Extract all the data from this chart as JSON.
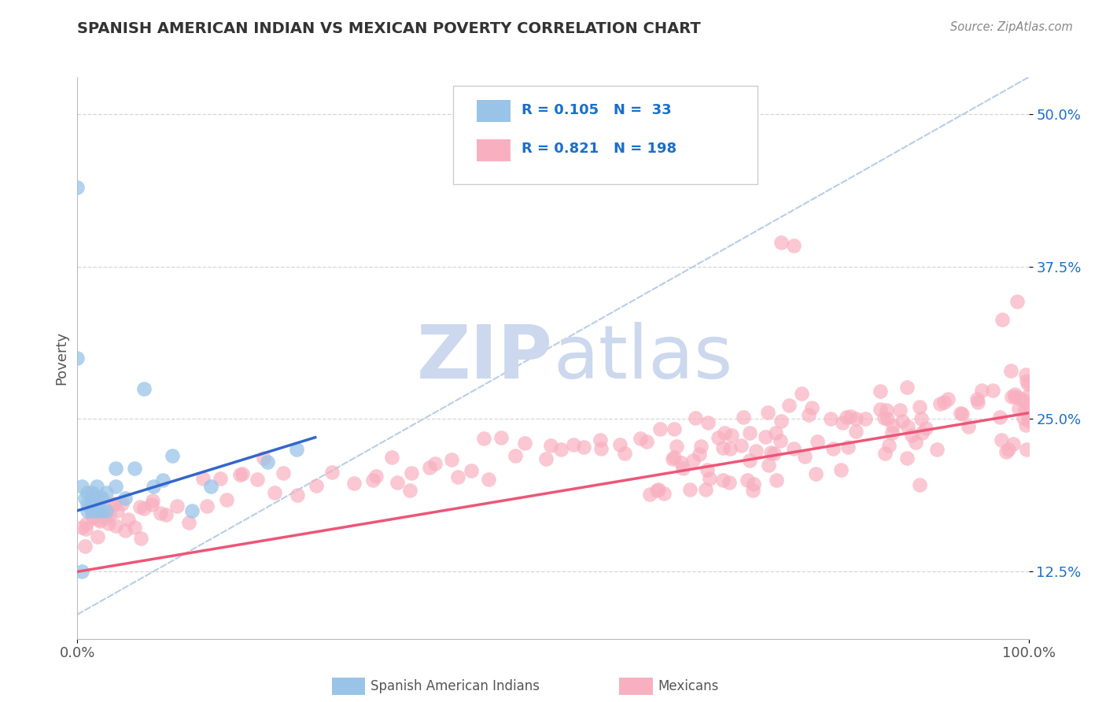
{
  "title": "SPANISH AMERICAN INDIAN VS MEXICAN POVERTY CORRELATION CHART",
  "source": "Source: ZipAtlas.com",
  "ylabel": "Poverty",
  "xlim": [
    0,
    1
  ],
  "ylim": [
    0.07,
    0.53
  ],
  "yticks": [
    0.125,
    0.25,
    0.375,
    0.5
  ],
  "ytick_labels": [
    "12.5%",
    "25.0%",
    "37.5%",
    "50.0%"
  ],
  "xtick_labels": [
    "0.0%",
    "100.0%"
  ],
  "legend_text_color": "#1a6fcc",
  "blue_color": "#99c4e8",
  "pink_color": "#f8b0c0",
  "blue_line_color": "#3366cc",
  "pink_line_color": "#ee5577",
  "diag_line_color": "#b0c8e8",
  "grid_color": "#cccccc",
  "title_color": "#333333",
  "watermark_color": "#ccd8ee",
  "blue_line_x": [
    0.0,
    0.25
  ],
  "blue_line_y": [
    0.175,
    0.235
  ],
  "pink_line_x": [
    0.0,
    1.0
  ],
  "pink_line_y": [
    0.125,
    0.255
  ],
  "diag_line_x": [
    0.0,
    1.0
  ],
  "diag_line_y": [
    0.09,
    0.53
  ],
  "blue_x": [
    0.005,
    0.0,
    0.0,
    0.005,
    0.008,
    0.01,
    0.01,
    0.01,
    0.015,
    0.015,
    0.015,
    0.015,
    0.015,
    0.02,
    0.02,
    0.02,
    0.02,
    0.025,
    0.025,
    0.03,
    0.03,
    0.04,
    0.04,
    0.05,
    0.06,
    0.07,
    0.08,
    0.09,
    0.1,
    0.12,
    0.14,
    0.2,
    0.23
  ],
  "blue_y": [
    0.125,
    0.44,
    0.3,
    0.195,
    0.185,
    0.19,
    0.18,
    0.175,
    0.19,
    0.185,
    0.185,
    0.18,
    0.175,
    0.195,
    0.185,
    0.185,
    0.175,
    0.185,
    0.175,
    0.19,
    0.175,
    0.195,
    0.21,
    0.185,
    0.21,
    0.275,
    0.195,
    0.2,
    0.22,
    0.175,
    0.195,
    0.215,
    0.225
  ],
  "pink_x_0": [
    0.005,
    0.008,
    0.01,
    0.01,
    0.012,
    0.015,
    0.015,
    0.015,
    0.015,
    0.02,
    0.02,
    0.02,
    0.02,
    0.025,
    0.025,
    0.03,
    0.03,
    0.035,
    0.035,
    0.04,
    0.04,
    0.04,
    0.04,
    0.05,
    0.055,
    0.06,
    0.065,
    0.065,
    0.07,
    0.075
  ],
  "pink_y_0": [
    0.165,
    0.165,
    0.17,
    0.16,
    0.175,
    0.175,
    0.17,
    0.165,
    0.16,
    0.175,
    0.17,
    0.165,
    0.16,
    0.175,
    0.165,
    0.17,
    0.165,
    0.175,
    0.165,
    0.18,
    0.175,
    0.17,
    0.165,
    0.175,
    0.17,
    0.175,
    0.175,
    0.165,
    0.18,
    0.175
  ],
  "pink_x_1": [
    0.08,
    0.09,
    0.1,
    0.11,
    0.12,
    0.13,
    0.14,
    0.15,
    0.16,
    0.17,
    0.18,
    0.19,
    0.2,
    0.21,
    0.22,
    0.23,
    0.25,
    0.27,
    0.29,
    0.31,
    0.33,
    0.35,
    0.37,
    0.39,
    0.41,
    0.43,
    0.45,
    0.47,
    0.49,
    0.51
  ],
  "pink_y_1": [
    0.17,
    0.175,
    0.175,
    0.18,
    0.18,
    0.185,
    0.185,
    0.19,
    0.185,
    0.195,
    0.19,
    0.195,
    0.2,
    0.195,
    0.2,
    0.195,
    0.205,
    0.21,
    0.205,
    0.21,
    0.215,
    0.21,
    0.215,
    0.22,
    0.215,
    0.22,
    0.225,
    0.22,
    0.225,
    0.23
  ],
  "pink_x_2": [
    0.53,
    0.55,
    0.57,
    0.59,
    0.61,
    0.63,
    0.65,
    0.67,
    0.69,
    0.71,
    0.73,
    0.75,
    0.77,
    0.79,
    0.81,
    0.83,
    0.85,
    0.87,
    0.89,
    0.91,
    0.93,
    0.95,
    0.97,
    0.98,
    0.985,
    0.99,
    0.993,
    0.995,
    0.997,
    0.999
  ],
  "pink_y_2": [
    0.23,
    0.235,
    0.235,
    0.24,
    0.235,
    0.24,
    0.245,
    0.24,
    0.245,
    0.25,
    0.245,
    0.39,
    0.25,
    0.255,
    0.25,
    0.255,
    0.26,
    0.255,
    0.26,
    0.265,
    0.26,
    0.265,
    0.32,
    0.285,
    0.35,
    0.255,
    0.26,
    0.27,
    0.265,
    0.265
  ],
  "pink_x_3": [
    0.31,
    0.33,
    0.35,
    0.37,
    0.4,
    0.43,
    0.46,
    0.5,
    0.52,
    0.55,
    0.58,
    0.6,
    0.63,
    0.65,
    0.68,
    0.7,
    0.72,
    0.75,
    0.78,
    0.8,
    0.82,
    0.85,
    0.87,
    0.89,
    0.91,
    0.93,
    0.95,
    0.97,
    0.98,
    0.99,
    0.992,
    0.994,
    0.996,
    0.998,
    1.0,
    1.0,
    1.0,
    1.0
  ],
  "pink_y_3": [
    0.19,
    0.2,
    0.195,
    0.21,
    0.21,
    0.215,
    0.215,
    0.22,
    0.22,
    0.225,
    0.225,
    0.23,
    0.235,
    0.23,
    0.235,
    0.24,
    0.24,
    0.245,
    0.24,
    0.245,
    0.25,
    0.25,
    0.255,
    0.26,
    0.255,
    0.26,
    0.265,
    0.26,
    0.265,
    0.27,
    0.265,
    0.27,
    0.275,
    0.27,
    0.28,
    0.26,
    0.245,
    0.235
  ]
}
